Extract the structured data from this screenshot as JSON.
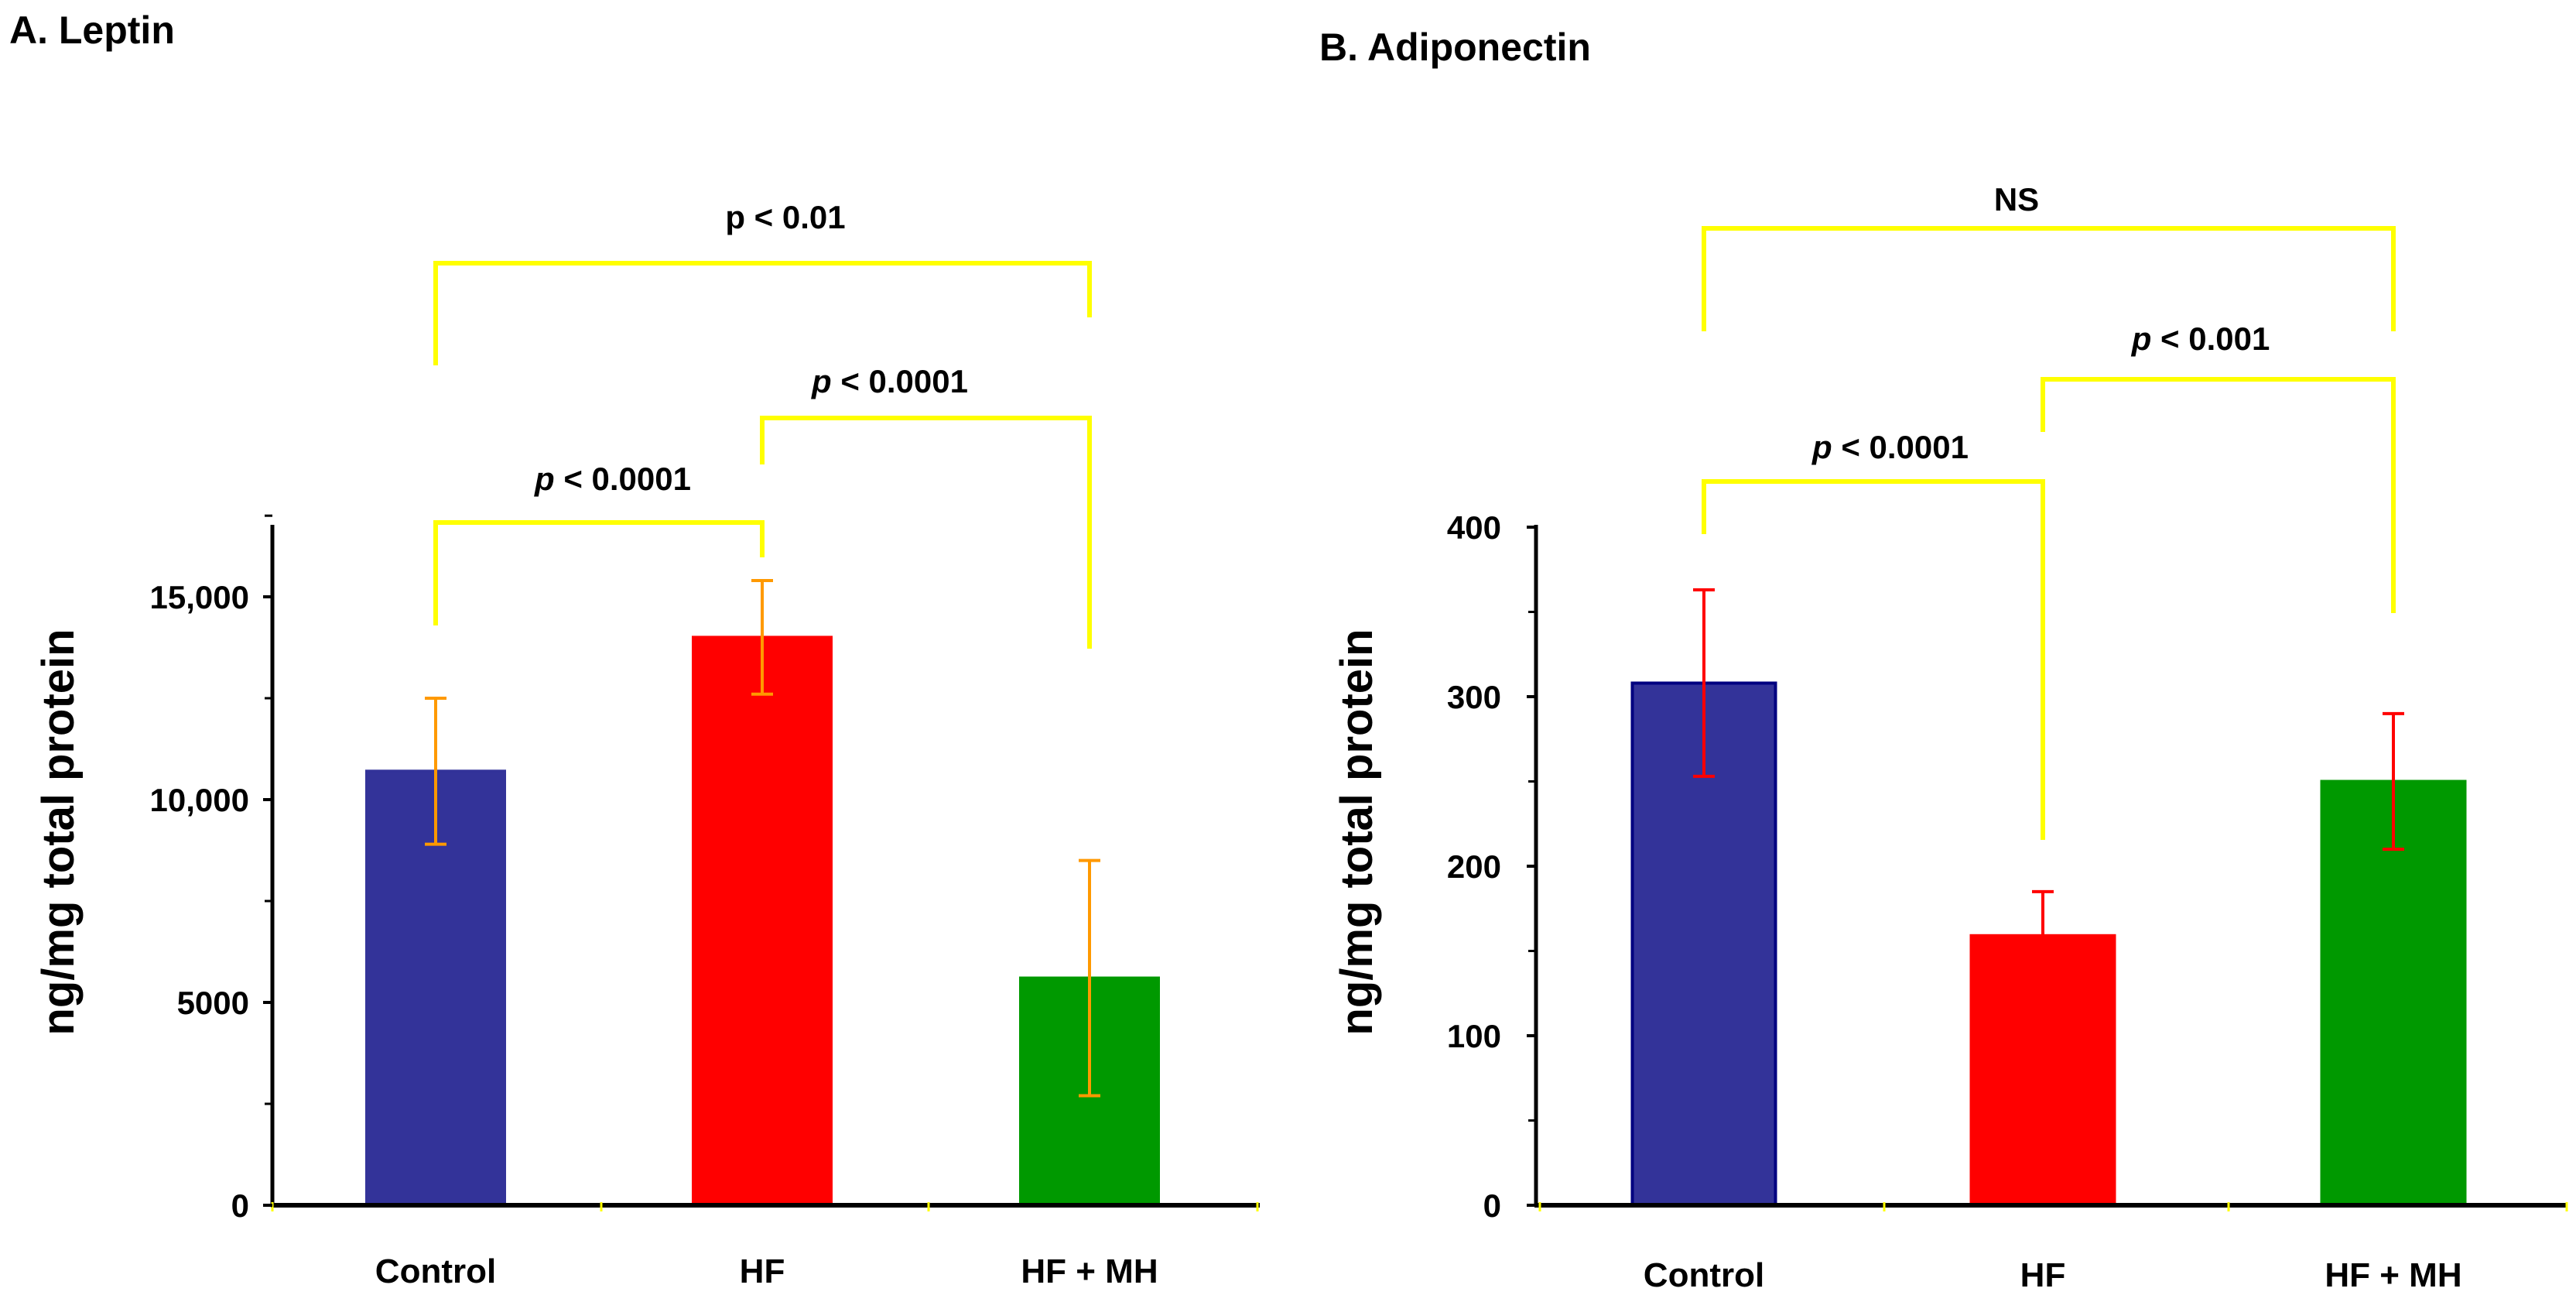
{
  "colors": {
    "bracket": "#FFFF00",
    "axis": "#000000",
    "background": "#FFFFFF"
  },
  "chart_data": [
    {
      "type": "bar",
      "panel_title": "A. Leptin",
      "ylabel": "ng/mg total protein",
      "ylim": [
        0,
        17000
      ],
      "ytick_values": [
        0,
        5000,
        10000,
        15000
      ],
      "ytick_labels": [
        "0",
        "5000",
        "10,000",
        "15,000"
      ],
      "categories": [
        "Control",
        "HF",
        "HF + MH"
      ],
      "values": [
        10700,
        14000,
        5600
      ],
      "errors": [
        1800,
        1400,
        2900
      ],
      "bar_colors": [
        "#333399",
        "#FF0000",
        "#009900"
      ],
      "bar_outline": [
        "#333399",
        "#FF0000",
        "#009900"
      ],
      "error_color": "#FF9900",
      "comparisons": [
        {
          "from": 0,
          "to": 2,
          "p_prefix": "p",
          "p_rest": " < 0.01",
          "italic_p": false
        },
        {
          "from": 1,
          "to": 2,
          "p_prefix": "p",
          "p_rest": " < 0.0001",
          "italic_p": true
        },
        {
          "from": 0,
          "to": 1,
          "p_prefix": "p",
          "p_rest": " < 0.0001",
          "italic_p": true
        }
      ]
    },
    {
      "type": "bar",
      "panel_title": "B. Adiponectin",
      "ylabel": "ng/mg total protein",
      "ylim": [
        0,
        400
      ],
      "ytick_values": [
        0,
        100,
        200,
        300,
        400
      ],
      "ytick_labels": [
        "0",
        "100",
        "200",
        "300",
        "400"
      ],
      "categories": [
        "Control",
        "HF",
        "HF + MH"
      ],
      "values": [
        308,
        159,
        250
      ],
      "errors": [
        55,
        26,
        40
      ],
      "bar_colors": [
        "#333399",
        "#FF0000",
        "#009900"
      ],
      "bar_outline": [
        "#000080",
        "#FF0000",
        "#009900"
      ],
      "error_color": "#FF0000",
      "comparisons": [
        {
          "from": 0,
          "to": 2,
          "p_prefix": "",
          "p_rest": "NS",
          "italic_p": false
        },
        {
          "from": 1,
          "to": 2,
          "p_prefix": "p",
          "p_rest": " < 0.001",
          "italic_p": true
        },
        {
          "from": 0,
          "to": 1,
          "p_prefix": "p",
          "p_rest": " < 0.0001",
          "italic_p": true
        }
      ]
    }
  ]
}
